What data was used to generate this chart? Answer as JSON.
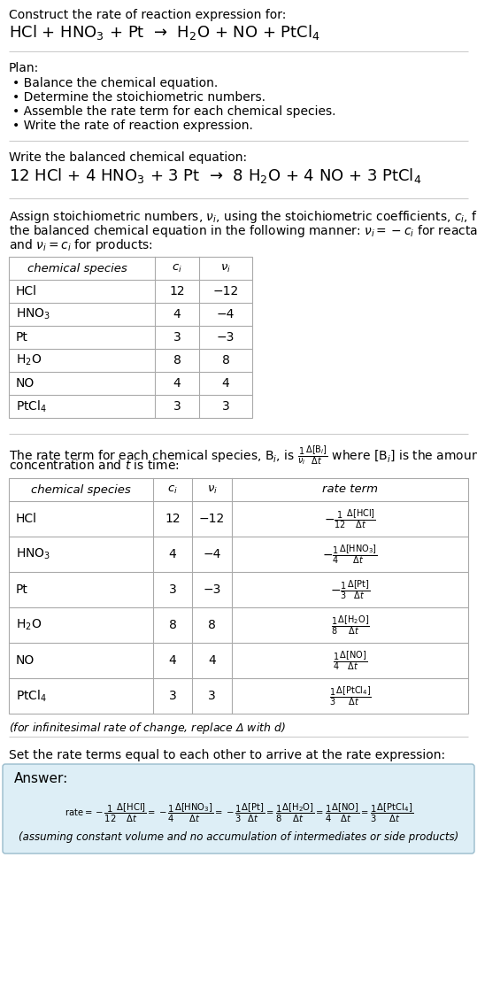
{
  "bg_color": "#ffffff",
  "answer_box_color": "#ddeef6",
  "answer_box_edge": "#aabbcc",
  "title_line1": "Construct the rate of reaction expression for:",
  "title_reaction": "HCl + HNO$_3$ + Pt  →  H$_2$O + NO + PtCl$_4$",
  "plan_header": "Plan:",
  "plan_items": [
    "• Balance the chemical equation.",
    "• Determine the stoichiometric numbers.",
    "• Assemble the rate term for each chemical species.",
    "• Write the rate of reaction expression."
  ],
  "balanced_header": "Write the balanced chemical equation:",
  "balanced_eq": "12 HCl + 4 HNO$_3$ + 3 Pt  →  8 H$_2$O + 4 NO + 3 PtCl$_4$",
  "stoich_intro_lines": [
    "Assign stoichiometric numbers, $\\nu_i$, using the stoichiometric coefficients, $c_i$, from",
    "the balanced chemical equation in the following manner: $\\nu_i = -c_i$ for reactants",
    "and $\\nu_i = c_i$ for products:"
  ],
  "table1_headers": [
    "chemical species",
    "$c_i$",
    "$\\nu_i$"
  ],
  "table1_rows": [
    [
      "HCl",
      "12",
      "−12"
    ],
    [
      "HNO$_3$",
      "4",
      "−4"
    ],
    [
      "Pt",
      "3",
      "−3"
    ],
    [
      "H$_2$O",
      "8",
      "8"
    ],
    [
      "NO",
      "4",
      "4"
    ],
    [
      "PtCl$_4$",
      "3",
      "3"
    ]
  ],
  "rate_intro_lines": [
    "The rate term for each chemical species, B$_i$, is $\\frac{1}{\\nu_i}\\frac{\\Delta[\\mathrm{B}_i]}{\\Delta t}$ where [B$_i$] is the amount",
    "concentration and $t$ is time:"
  ],
  "table2_headers": [
    "chemical species",
    "$c_i$",
    "$\\nu_i$",
    "rate term"
  ],
  "table2_rows": [
    [
      "HCl",
      "12",
      "−12",
      "-\\frac{1}{12}\\frac{\\Delta[\\mathrm{HCl}]}{\\Delta t}"
    ],
    [
      "HNO$_3$",
      "4",
      "−4",
      "-\\frac{1}{4}\\frac{\\Delta[\\mathrm{HNO_3}]}{\\Delta t}"
    ],
    [
      "Pt",
      "3",
      "−3",
      "-\\frac{1}{3}\\frac{\\Delta[\\mathrm{Pt}]}{\\Delta t}"
    ],
    [
      "H$_2$O",
      "8",
      "8",
      "\\frac{1}{8}\\frac{\\Delta[\\mathrm{H_2O}]}{\\Delta t}"
    ],
    [
      "NO",
      "4",
      "4",
      "\\frac{1}{4}\\frac{\\Delta[\\mathrm{NO}]}{\\Delta t}"
    ],
    [
      "PtCl$_4$",
      "3",
      "3",
      "\\frac{1}{3}\\frac{\\Delta[\\mathrm{PtCl_4}]}{\\Delta t}"
    ]
  ],
  "delta_note": "(for infinitesimal rate of change, replace Δ with $d$)",
  "set_equal_text": "Set the rate terms equal to each other to arrive at the rate expression:",
  "answer_label": "Answer:",
  "answer_note": "(assuming constant volume and no accumulation of intermediates or side products)"
}
